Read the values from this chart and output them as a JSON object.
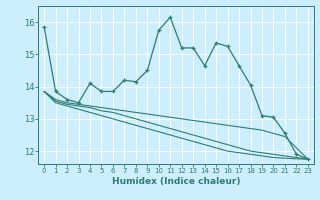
{
  "title": "",
  "xlabel": "Humidex (Indice chaleur)",
  "bg_color": "#cceeff",
  "line_color": "#2e7d70",
  "grid_color": "#ffffff",
  "xlim": [
    -0.5,
    23.5
  ],
  "ylim": [
    11.6,
    16.5
  ],
  "yticks": [
    12,
    13,
    14,
    15,
    16
  ],
  "xticks": [
    0,
    1,
    2,
    3,
    4,
    5,
    6,
    7,
    8,
    9,
    10,
    11,
    12,
    13,
    14,
    15,
    16,
    17,
    18,
    19,
    20,
    21,
    22,
    23
  ],
  "series": [
    [
      15.85,
      13.85,
      13.6,
      13.5,
      14.1,
      13.85,
      13.85,
      14.2,
      14.15,
      14.5,
      15.75,
      16.15,
      15.2,
      15.2,
      14.65,
      15.35,
      15.25,
      14.65,
      14.05,
      13.1,
      13.05,
      12.55,
      11.9,
      11.75
    ],
    [
      13.85,
      13.6,
      13.5,
      13.45,
      13.4,
      13.35,
      13.3,
      13.25,
      13.2,
      13.15,
      13.1,
      13.05,
      13.0,
      12.95,
      12.9,
      12.85,
      12.8,
      12.75,
      12.7,
      12.65,
      12.55,
      12.45,
      12.1,
      11.75
    ],
    [
      13.85,
      13.55,
      13.45,
      13.4,
      13.35,
      13.25,
      13.2,
      13.1,
      13.0,
      12.9,
      12.8,
      12.7,
      12.6,
      12.5,
      12.4,
      12.3,
      12.2,
      12.1,
      12.0,
      11.95,
      11.9,
      11.85,
      11.8,
      11.75
    ],
    [
      13.85,
      13.5,
      13.4,
      13.3,
      13.2,
      13.1,
      13.0,
      12.9,
      12.8,
      12.7,
      12.6,
      12.5,
      12.4,
      12.3,
      12.2,
      12.1,
      12.0,
      11.95,
      11.9,
      11.85,
      11.8,
      11.78,
      11.76,
      11.75
    ]
  ]
}
